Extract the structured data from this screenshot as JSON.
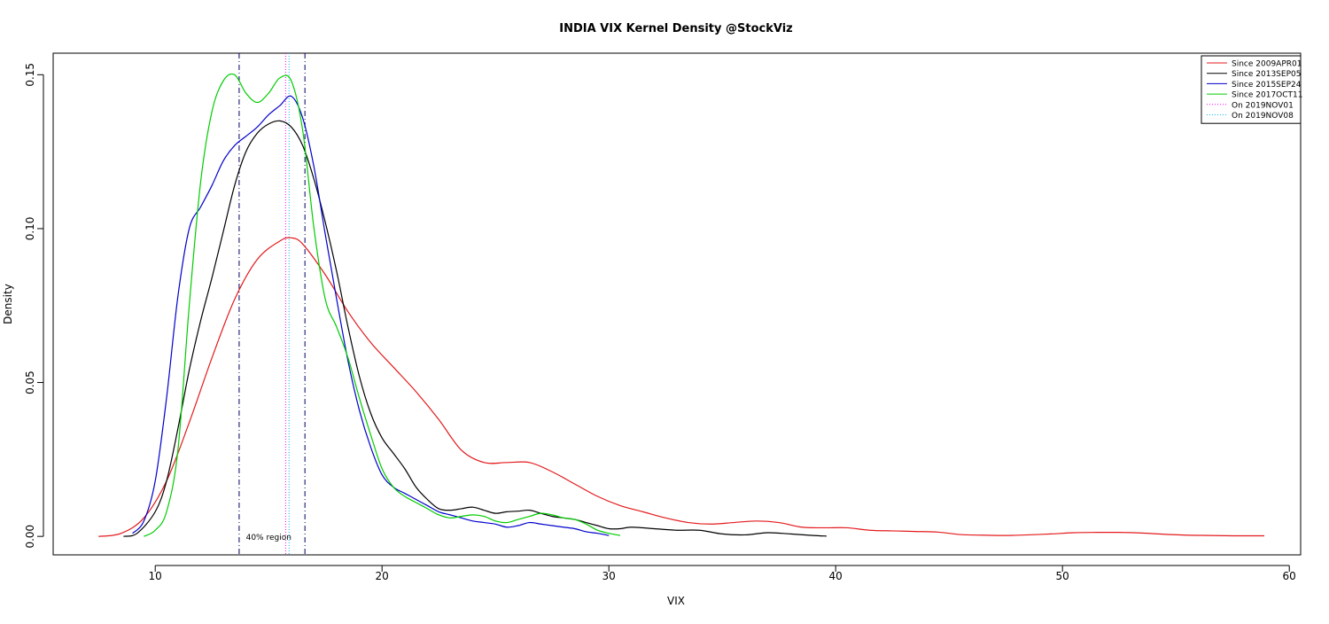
{
  "chart_data": {
    "type": "line",
    "title": "INDIA VIX Kernel Density @StockViz",
    "xlabel": "VIX",
    "ylabel": "Density",
    "xlim": [
      5.5,
      60.5
    ],
    "ylim": [
      -0.006,
      0.157
    ],
    "x_ticks": [
      10,
      20,
      30,
      40,
      50,
      60
    ],
    "y_ticks": [
      0.0,
      0.05,
      0.1,
      0.15
    ],
    "x_tick_labels": [
      "10",
      "20",
      "30",
      "40",
      "50",
      "60"
    ],
    "y_tick_labels": [
      "0.00",
      "0.05",
      "0.10",
      "0.15"
    ],
    "grid": false,
    "legend_position": "top-right",
    "series": [
      {
        "name": "Since 2009APR01",
        "color": "#e31a1c",
        "x": [
          7.5,
          8.5,
          9.5,
          10.5,
          11.5,
          12.5,
          13.5,
          14.5,
          15.5,
          16.0,
          16.5,
          17.5,
          18.5,
          19.5,
          20.5,
          21.5,
          22.5,
          23.5,
          24.5,
          25.5,
          26.5,
          27.5,
          28.5,
          29.5,
          30.5,
          31.5,
          32.5,
          33.5,
          34.5,
          35.5,
          36.5,
          37.5,
          38.5,
          39.5,
          40.5,
          41.5,
          42.5,
          43.5,
          44.5,
          45.5,
          46.5,
          47.5,
          48.5,
          49.5,
          50.5,
          51.5,
          52.5,
          53.5,
          54.5,
          55.5,
          56.5,
          57.5,
          58.9
        ],
        "y": [
          0.0,
          0.001,
          0.006,
          0.018,
          0.037,
          0.058,
          0.077,
          0.09,
          0.096,
          0.097,
          0.095,
          0.085,
          0.073,
          0.063,
          0.055,
          0.047,
          0.038,
          0.028,
          0.024,
          0.024,
          0.024,
          0.021,
          0.017,
          0.013,
          0.01,
          0.008,
          0.006,
          0.0045,
          0.004,
          0.0045,
          0.005,
          0.0045,
          0.003,
          0.0028,
          0.0028,
          0.002,
          0.0018,
          0.0016,
          0.0014,
          0.0006,
          0.0004,
          0.0003,
          0.0005,
          0.0008,
          0.0012,
          0.0013,
          0.0013,
          0.0011,
          0.0007,
          0.0004,
          0.0003,
          0.0002,
          0.0002
        ]
      },
      {
        "name": "Since 2013SEP05",
        "color": "#000000",
        "x": [
          8.6,
          9.2,
          10.0,
          10.5,
          11.0,
          11.5,
          12.0,
          12.5,
          13.0,
          13.5,
          14.0,
          14.5,
          15.0,
          15.5,
          16.0,
          16.5,
          17.0,
          17.5,
          18.0,
          18.5,
          19.0,
          19.5,
          20.0,
          20.5,
          21.0,
          21.5,
          22.0,
          22.5,
          23.0,
          23.5,
          24.0,
          24.5,
          25.0,
          25.5,
          26.0,
          26.5,
          27.0,
          27.5,
          28.0,
          28.5,
          29.0,
          29.5,
          30.0,
          30.5,
          31.0,
          32.0,
          33.0,
          34.0,
          35.0,
          36.0,
          37.0,
          38.0,
          39.0,
          39.6
        ],
        "y": [
          0.0,
          0.001,
          0.008,
          0.018,
          0.035,
          0.054,
          0.07,
          0.084,
          0.099,
          0.114,
          0.125,
          0.131,
          0.134,
          0.135,
          0.133,
          0.127,
          0.116,
          0.102,
          0.086,
          0.068,
          0.052,
          0.04,
          0.032,
          0.027,
          0.022,
          0.016,
          0.012,
          0.009,
          0.0085,
          0.009,
          0.0095,
          0.0085,
          0.0075,
          0.008,
          0.0082,
          0.0085,
          0.0075,
          0.0065,
          0.006,
          0.0055,
          0.0045,
          0.0035,
          0.0025,
          0.0025,
          0.003,
          0.0025,
          0.002,
          0.002,
          0.0008,
          0.0005,
          0.0012,
          0.0008,
          0.0003,
          0.0001
        ]
      },
      {
        "name": "Since 2015SEP24",
        "color": "#0000cc",
        "x": [
          9.0,
          9.5,
          10.0,
          10.5,
          11.0,
          11.5,
          12.0,
          12.5,
          13.0,
          13.5,
          14.0,
          14.5,
          15.0,
          15.5,
          16.0,
          16.5,
          17.0,
          17.5,
          18.0,
          18.5,
          19.0,
          19.5,
          20.0,
          20.5,
          21.0,
          21.5,
          22.0,
          22.5,
          23.0,
          23.5,
          24.0,
          24.5,
          25.0,
          25.5,
          26.0,
          26.5,
          27.0,
          27.5,
          28.0,
          28.5,
          29.0,
          29.5,
          30.0
        ],
        "y": [
          0.001,
          0.005,
          0.018,
          0.045,
          0.078,
          0.1,
          0.107,
          0.114,
          0.122,
          0.127,
          0.13,
          0.133,
          0.137,
          0.14,
          0.143,
          0.136,
          0.12,
          0.098,
          0.077,
          0.057,
          0.041,
          0.029,
          0.02,
          0.016,
          0.014,
          0.012,
          0.01,
          0.008,
          0.007,
          0.006,
          0.005,
          0.0045,
          0.004,
          0.003,
          0.0035,
          0.0045,
          0.004,
          0.0035,
          0.003,
          0.0025,
          0.0015,
          0.001,
          0.0003
        ]
      },
      {
        "name": "Since 2017OCT11",
        "color": "#00cc00",
        "x": [
          9.5,
          10.0,
          10.5,
          11.0,
          11.5,
          12.0,
          12.5,
          13.0,
          13.5,
          14.0,
          14.5,
          15.0,
          15.5,
          16.0,
          16.5,
          17.0,
          17.5,
          18.0,
          18.5,
          19.0,
          19.5,
          20.0,
          20.5,
          21.0,
          21.5,
          22.0,
          22.5,
          23.0,
          23.5,
          24.0,
          24.5,
          25.0,
          25.5,
          26.0,
          26.5,
          27.0,
          27.5,
          28.0,
          28.5,
          29.0,
          29.5,
          30.0,
          30.5
        ],
        "y": [
          0.0,
          0.002,
          0.008,
          0.028,
          0.075,
          0.115,
          0.138,
          0.148,
          0.15,
          0.144,
          0.141,
          0.144,
          0.149,
          0.148,
          0.132,
          0.1,
          0.077,
          0.068,
          0.058,
          0.045,
          0.033,
          0.022,
          0.016,
          0.013,
          0.011,
          0.009,
          0.007,
          0.006,
          0.0065,
          0.007,
          0.0065,
          0.005,
          0.0045,
          0.0055,
          0.0065,
          0.0075,
          0.007,
          0.006,
          0.0055,
          0.004,
          0.002,
          0.001,
          0.0003
        ]
      }
    ],
    "vertical_lines": [
      {
        "name": "region-lower-bound",
        "x": 13.7,
        "color": "#000066",
        "style": "dashdot"
      },
      {
        "name": "On 2019NOV01",
        "x": 15.75,
        "color": "#ff00ff",
        "style": "dotted"
      },
      {
        "name": "On 2019NOV08",
        "x": 15.9,
        "color": "#00bbee",
        "style": "dotted"
      },
      {
        "name": "region-upper-bound",
        "x": 16.6,
        "color": "#000066",
        "style": "dashdot"
      }
    ],
    "legend": [
      {
        "label": "Since 2009APR01",
        "color": "#e31a1c",
        "style": "solid"
      },
      {
        "label": "Since 2013SEP05",
        "color": "#000000",
        "style": "solid"
      },
      {
        "label": "Since 2015SEP24",
        "color": "#0000cc",
        "style": "solid"
      },
      {
        "label": "Since 2017OCT11",
        "color": "#00cc00",
        "style": "solid"
      },
      {
        "label": "On 2019NOV01",
        "color": "#ff00ff",
        "style": "dotted"
      },
      {
        "label": "On 2019NOV08",
        "color": "#00bbee",
        "style": "dotted"
      }
    ],
    "annotations": [
      {
        "text": "40% region",
        "x": 14.0,
        "y": 0.0
      }
    ]
  }
}
